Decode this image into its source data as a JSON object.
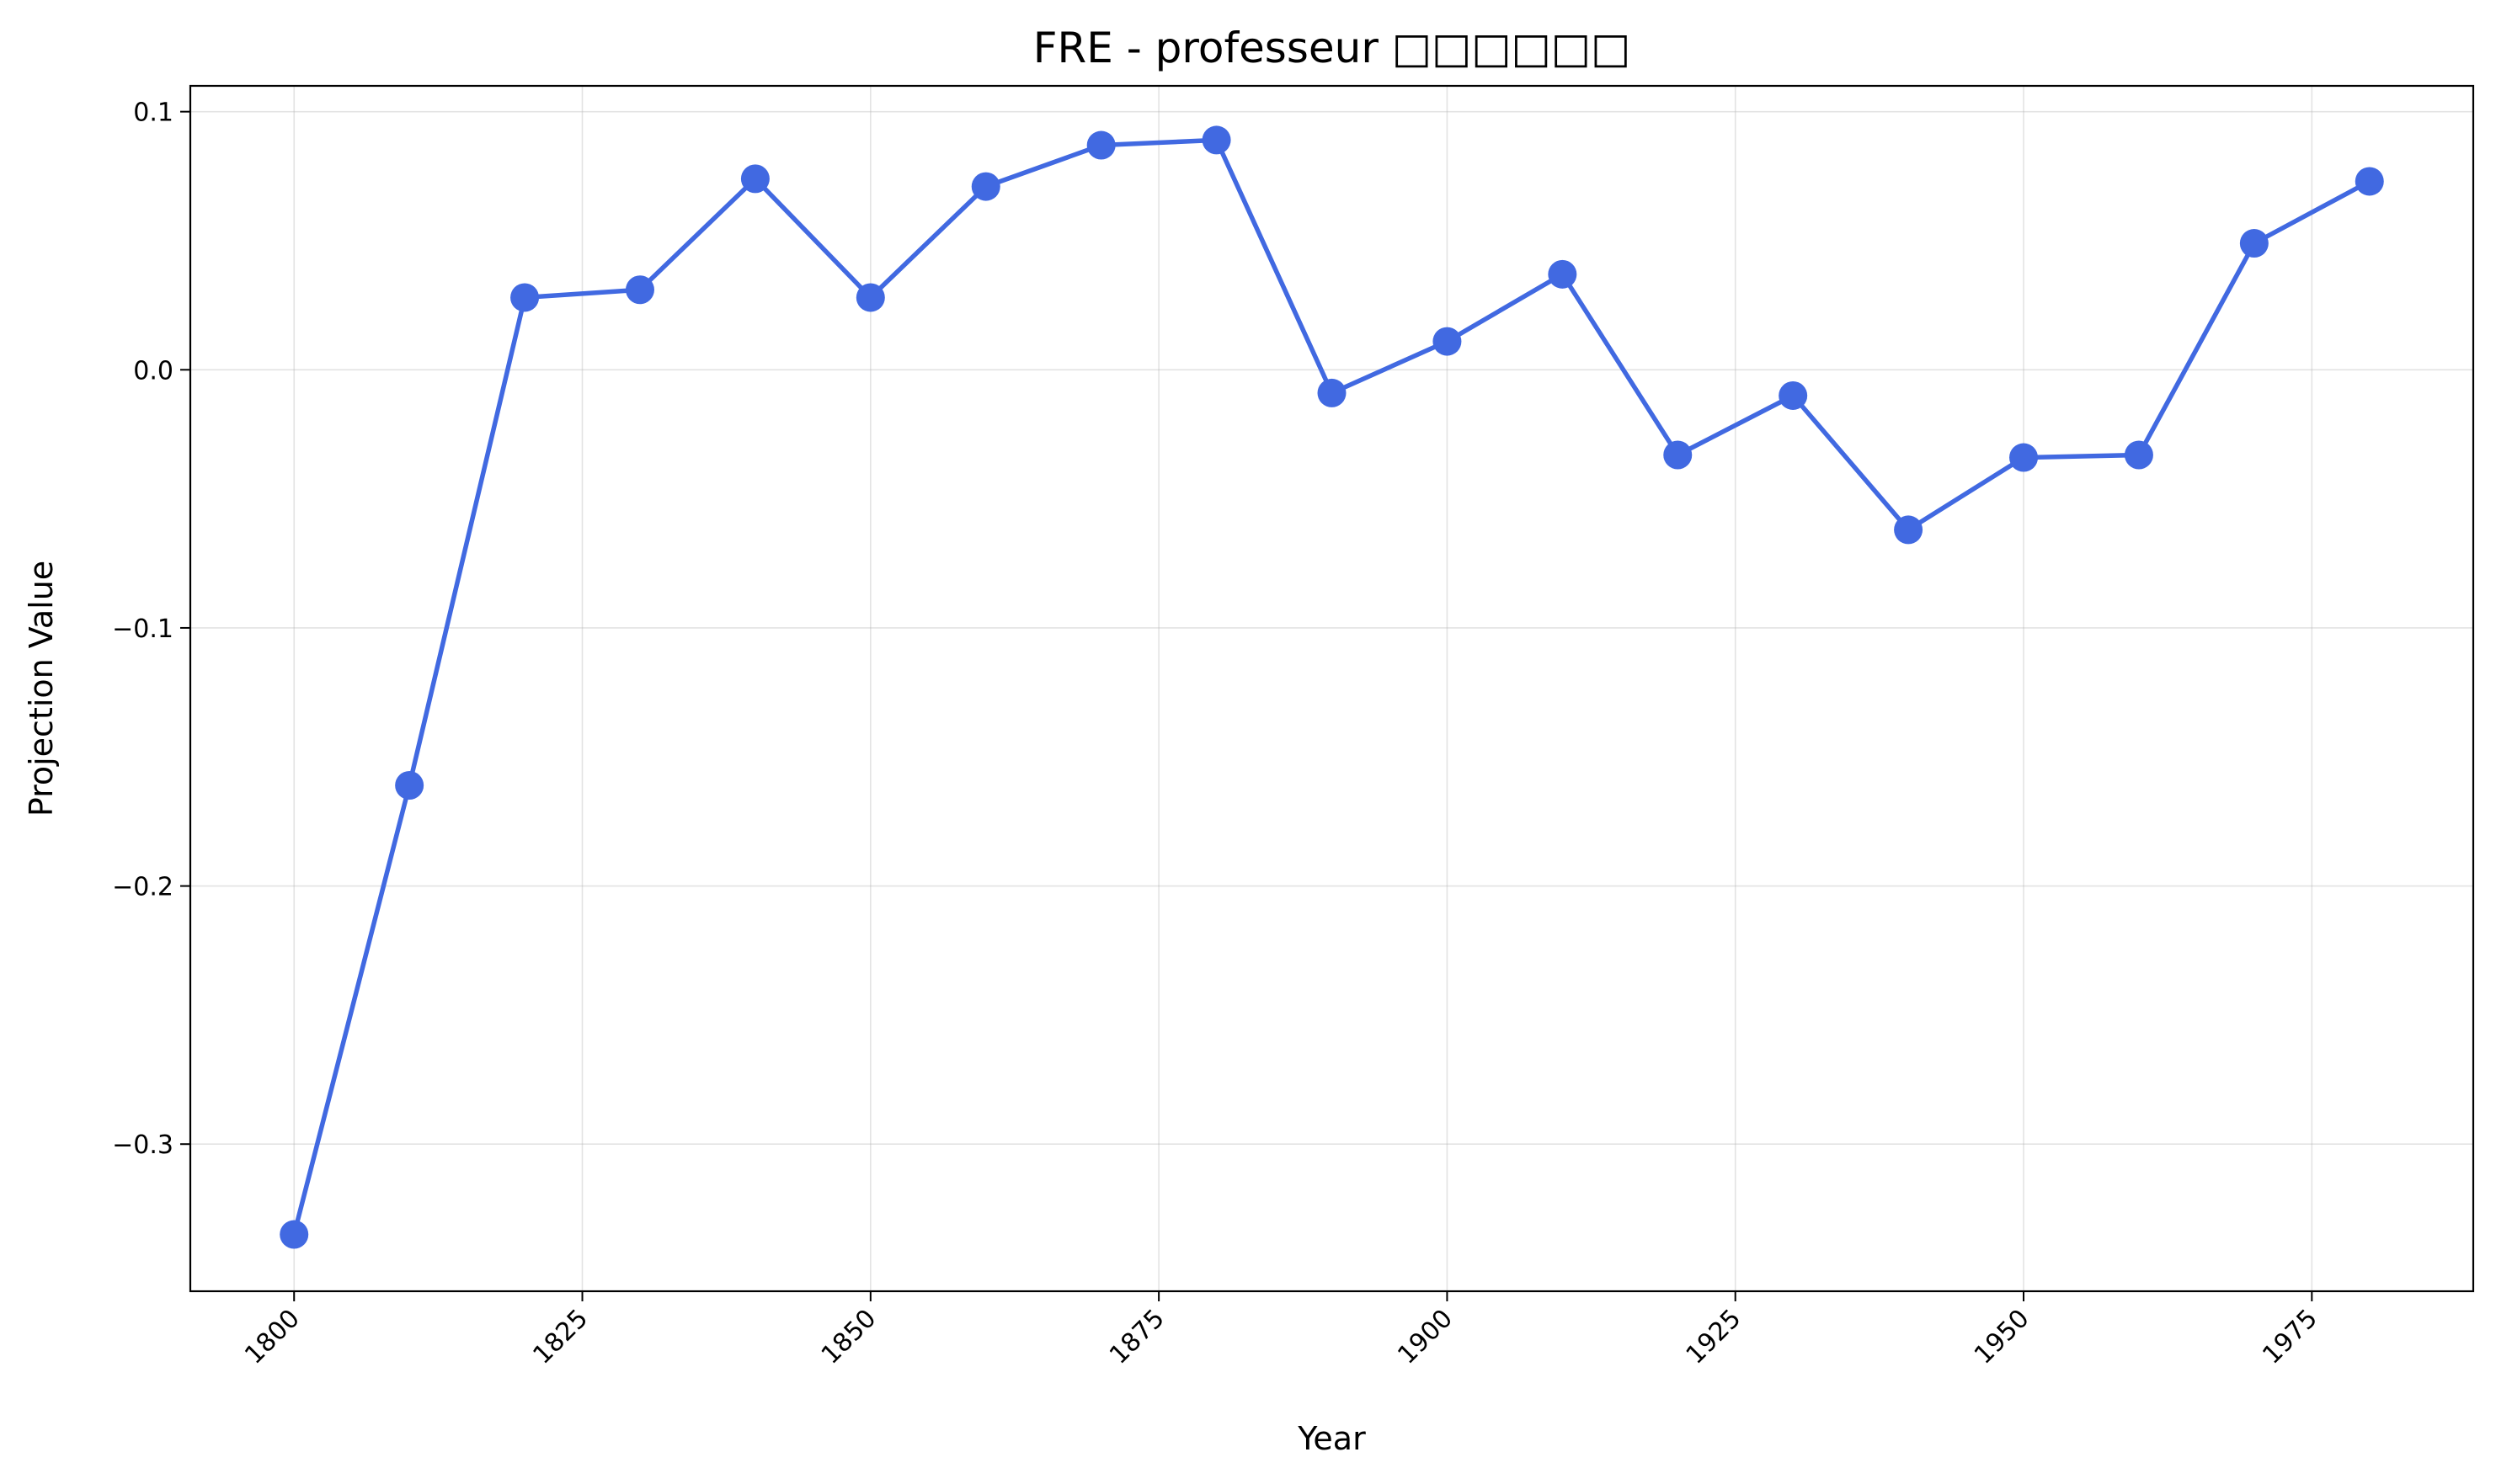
{
  "chart_data": {
    "type": "line",
    "title": "FRE - professeur □□□□□□",
    "xlabel": "Year",
    "ylabel": "Projection Value",
    "xlim": [
      1791,
      1989
    ],
    "ylim": [
      -0.357,
      0.11
    ],
    "xticks": [
      1800,
      1825,
      1850,
      1875,
      1900,
      1925,
      1950,
      1975
    ],
    "yticks": [
      0.1,
      0.0,
      -0.1,
      -0.2,
      -0.3
    ],
    "ytick_labels": [
      "0.1",
      "0.0",
      "−0.1",
      "−0.2",
      "−0.3"
    ],
    "grid": true,
    "color": "#4169e1",
    "x": [
      1800,
      1810,
      1820,
      1830,
      1840,
      1850,
      1860,
      1870,
      1880,
      1890,
      1900,
      1910,
      1920,
      1930,
      1940,
      1950,
      1960,
      1970,
      1980
    ],
    "y": [
      -0.335,
      -0.161,
      0.028,
      0.031,
      0.074,
      0.028,
      0.071,
      0.087,
      0.089,
      -0.009,
      0.011,
      0.037,
      -0.033,
      -0.01,
      -0.062,
      -0.034,
      -0.033,
      0.049,
      0.073
    ]
  }
}
